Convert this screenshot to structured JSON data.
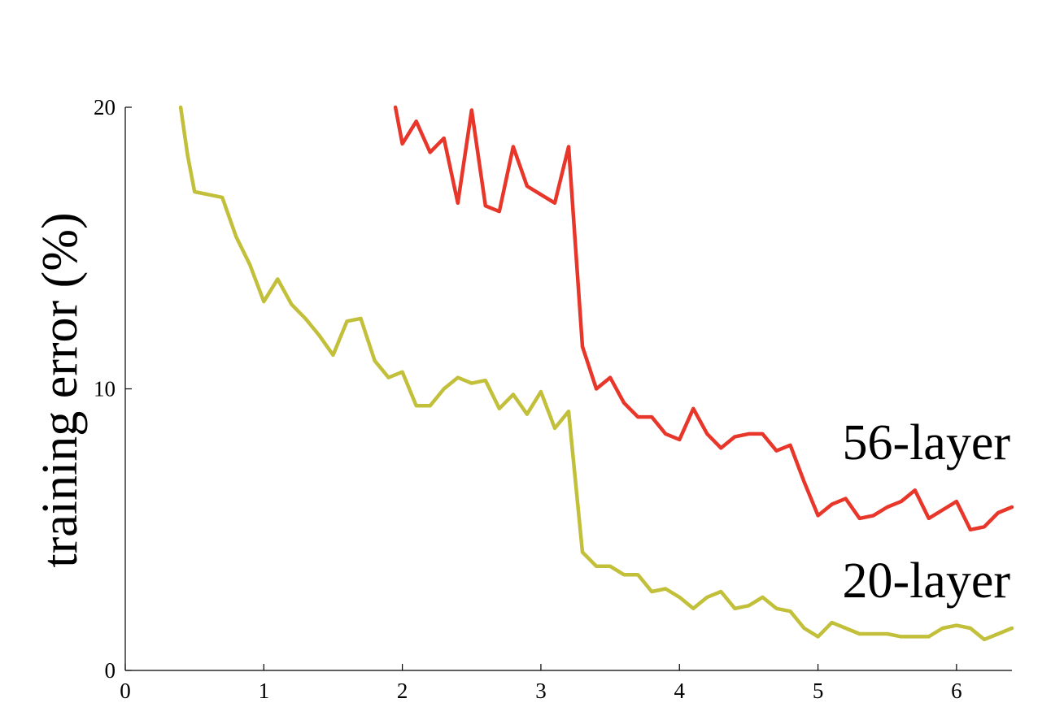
{
  "chart_data": {
    "type": "line",
    "title": "",
    "xlabel": "",
    "ylabel": "training error (%)",
    "xlim": [
      0,
      6.4
    ],
    "ylim": [
      0,
      20
    ],
    "xticks": [
      0,
      1,
      2,
      3,
      4,
      5,
      6
    ],
    "yticks": [
      0,
      10,
      20
    ],
    "xtick_labels": [
      "0",
      "1",
      "2",
      "3",
      "4",
      "5",
      "6"
    ],
    "ytick_labels": [
      "0",
      "10",
      "20"
    ],
    "grid": false,
    "legend": "none",
    "series": [
      {
        "name": "56-layer",
        "color": "#e8372a",
        "label_anchor": [
          6.4,
          7.5
        ],
        "x": [
          1.95,
          2.0,
          2.1,
          2.2,
          2.3,
          2.4,
          2.5,
          2.6,
          2.7,
          2.8,
          2.9,
          3.0,
          3.1,
          3.2,
          3.3,
          3.4,
          3.5,
          3.6,
          3.7,
          3.8,
          3.9,
          4.0,
          4.1,
          4.2,
          4.3,
          4.4,
          4.5,
          4.6,
          4.7,
          4.8,
          4.9,
          5.0,
          5.1,
          5.2,
          5.3,
          5.4,
          5.5,
          5.6,
          5.7,
          5.8,
          5.9,
          6.0,
          6.1,
          6.2,
          6.3,
          6.4
        ],
        "y": [
          20.0,
          18.7,
          19.5,
          18.4,
          18.9,
          16.6,
          19.9,
          16.5,
          16.3,
          18.6,
          17.2,
          16.9,
          16.6,
          18.6,
          11.5,
          10.0,
          10.4,
          9.5,
          9.0,
          9.0,
          8.4,
          8.2,
          9.3,
          8.4,
          7.9,
          8.3,
          8.4,
          8.4,
          7.8,
          8.0,
          6.7,
          5.5,
          5.9,
          6.1,
          5.4,
          5.5,
          5.8,
          6.0,
          6.4,
          5.4,
          5.7,
          6.0,
          5.0,
          5.1,
          5.6,
          5.8
        ]
      },
      {
        "name": "20-layer",
        "color": "#c2c03a",
        "label_anchor": [
          6.4,
          2.6
        ],
        "x": [
          0.4,
          0.45,
          0.5,
          0.6,
          0.7,
          0.8,
          0.9,
          1.0,
          1.1,
          1.2,
          1.3,
          1.4,
          1.5,
          1.6,
          1.7,
          1.8,
          1.9,
          2.0,
          2.1,
          2.2,
          2.3,
          2.4,
          2.5,
          2.6,
          2.7,
          2.8,
          2.9,
          3.0,
          3.1,
          3.2,
          3.3,
          3.4,
          3.5,
          3.6,
          3.7,
          3.8,
          3.9,
          4.0,
          4.1,
          4.2,
          4.3,
          4.4,
          4.5,
          4.6,
          4.7,
          4.8,
          4.9,
          5.0,
          5.1,
          5.2,
          5.3,
          5.4,
          5.5,
          5.6,
          5.7,
          5.8,
          5.9,
          6.0,
          6.1,
          6.2,
          6.3,
          6.4
        ],
        "y": [
          20.0,
          18.3,
          17.0,
          16.9,
          16.8,
          15.4,
          14.4,
          13.1,
          13.9,
          13.0,
          12.5,
          11.9,
          11.2,
          12.4,
          12.5,
          11.0,
          10.4,
          10.6,
          9.4,
          9.4,
          10.0,
          10.4,
          10.2,
          10.3,
          9.3,
          9.8,
          9.1,
          9.9,
          8.6,
          9.2,
          4.2,
          3.7,
          3.7,
          3.4,
          3.4,
          2.8,
          2.9,
          2.6,
          2.2,
          2.6,
          2.8,
          2.2,
          2.3,
          2.6,
          2.2,
          2.1,
          1.5,
          1.2,
          1.7,
          1.5,
          1.3,
          1.3,
          1.3,
          1.2,
          1.2,
          1.2,
          1.5,
          1.6,
          1.5,
          1.1,
          1.3,
          1.5
        ]
      }
    ]
  }
}
